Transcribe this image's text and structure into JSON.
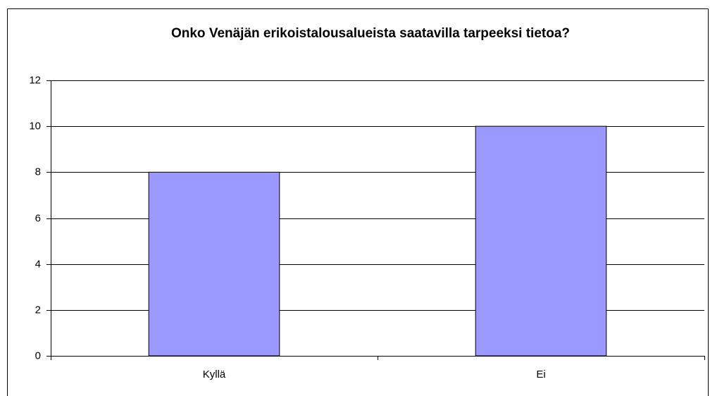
{
  "chart_data": {
    "type": "bar",
    "title": "Onko Venäjän erikoistalousalueista saatavilla tarpeeksi tietoa?",
    "categories": [
      "Kyllä",
      "Ei"
    ],
    "values": [
      8,
      10
    ],
    "color": "#9999ff",
    "ylim": [
      0,
      12
    ],
    "yticks": [
      0,
      2,
      4,
      6,
      8,
      10,
      12
    ],
    "grid": true
  }
}
